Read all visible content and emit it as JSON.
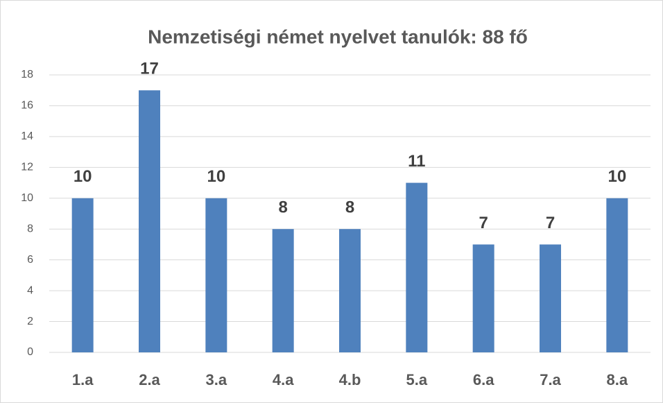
{
  "chart_data": {
    "type": "bar",
    "title": "Nemzetiségi német nyelvet tanulók: 88 fő",
    "categories": [
      "1.a",
      "2.a",
      "3.a",
      "4.a",
      "4.b",
      "5.a",
      "6.a",
      "7.a",
      "8.a"
    ],
    "values": [
      10,
      17,
      10,
      8,
      8,
      11,
      7,
      7,
      10
    ],
    "color": "#4f81bd",
    "ylim": [
      0,
      18
    ],
    "yticks": [
      0,
      2,
      4,
      6,
      8,
      10,
      12,
      14,
      16,
      18
    ],
    "grid": true
  }
}
